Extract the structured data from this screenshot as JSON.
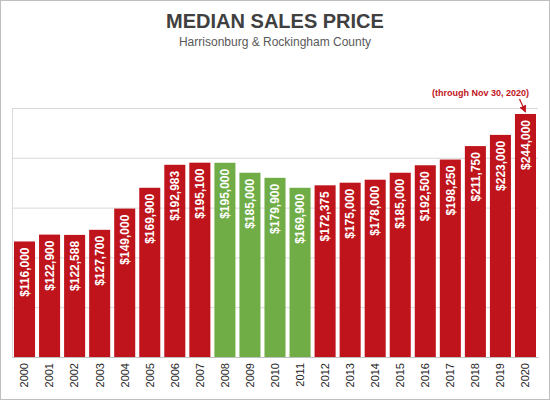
{
  "chart_data": {
    "type": "bar",
    "title": "MEDIAN SALES PRICE",
    "subtitle": "Harrisonburg & Rockingham County",
    "annotation": "(through Nov 30, 2020)",
    "categories": [
      "2000",
      "2001",
      "2002",
      "2003",
      "2004",
      "2005",
      "2006",
      "2007",
      "2008",
      "2009",
      "2010",
      "2011",
      "2012",
      "2013",
      "2014",
      "2015",
      "2016",
      "2017",
      "2018",
      "2019",
      "2020"
    ],
    "values": [
      116000,
      122900,
      122588,
      127700,
      149000,
      169900,
      192983,
      195100,
      195000,
      185000,
      179900,
      169900,
      172375,
      175000,
      178000,
      185000,
      192500,
      198250,
      211750,
      223000,
      244000
    ],
    "value_labels": [
      "$116,000",
      "$122,900",
      "$122,588",
      "$127,700",
      "$149,000",
      "$169,900",
      "$192,983",
      "$195,100",
      "$195,000",
      "$185,000",
      "$179,900",
      "$169,900",
      "$172,375",
      "$175,000",
      "$178,000",
      "$185,000",
      "$192,500",
      "$198,250",
      "$211,750",
      "$223,000",
      "$244,000"
    ],
    "colors": [
      "#c0141c",
      "#c0141c",
      "#c0141c",
      "#c0141c",
      "#c0141c",
      "#c0141c",
      "#c0141c",
      "#c0141c",
      "#70ad47",
      "#70ad47",
      "#70ad47",
      "#70ad47",
      "#c0141c",
      "#c0141c",
      "#c0141c",
      "#c0141c",
      "#c0141c",
      "#c0141c",
      "#c0141c",
      "#c0141c",
      "#c0141c"
    ],
    "ylim": [
      0,
      250000
    ],
    "yticks": [
      0,
      50000,
      100000,
      150000,
      200000,
      250000
    ],
    "grid": true,
    "data_labels": true,
    "tick_labels": "x"
  }
}
